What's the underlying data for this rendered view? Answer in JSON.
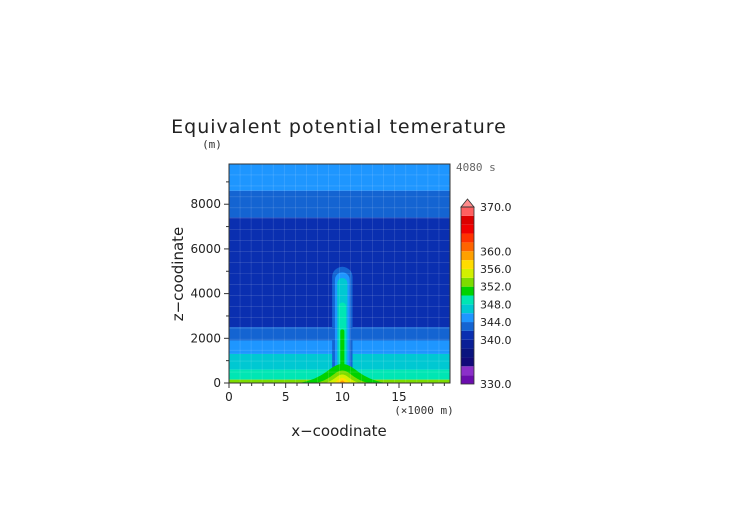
{
  "chart_data": {
    "type": "heatmap",
    "title": "Equivalent potential temerature",
    "unit_label": "(m)",
    "time_label": "4080 s",
    "xlabel": "x−coodinate",
    "ylabel": "z−coodinate",
    "x_unit_label": "(×1000 m)",
    "xlim": [
      0,
      19.5
    ],
    "ylim": [
      0,
      9800
    ],
    "x_ticks": [
      {
        "value": 0,
        "label": "0"
      },
      {
        "value": 5,
        "label": "5"
      },
      {
        "value": 10,
        "label": "10"
      },
      {
        "value": 15,
        "label": "15"
      }
    ],
    "y_ticks": [
      {
        "value": 0,
        "label": "0"
      },
      {
        "value": 2000,
        "label": "2000"
      },
      {
        "value": 4000,
        "label": "4000"
      },
      {
        "value": 6000,
        "label": "6000"
      },
      {
        "value": 8000,
        "label": "8000"
      }
    ],
    "plume_center_x": 10,
    "colorbar": {
      "range": [
        330,
        370
      ],
      "levels": [
        330,
        332,
        334,
        336,
        338,
        340,
        342,
        344,
        346,
        348,
        350,
        352,
        354,
        356,
        358,
        360,
        362,
        364,
        366,
        368,
        370
      ],
      "colors": [
        "#6a0dad",
        "#8b2fc9",
        "#120a7a",
        "#0a147f",
        "#0a1f96",
        "#0a2fb0",
        "#1464d2",
        "#1e96ff",
        "#00c8d2",
        "#00e6b4",
        "#00d200",
        "#7ddc00",
        "#d2f000",
        "#ffdc00",
        "#ffa000",
        "#ff6400",
        "#ff3200",
        "#f00000",
        "#dc0000",
        "#ff6060"
      ],
      "extend_top_color": "#ff8c8c",
      "labels": [
        {
          "value": 370,
          "label": "370.0"
        },
        {
          "value": 360,
          "label": "360.0"
        },
        {
          "value": 356,
          "label": "356.0"
        },
        {
          "value": 352,
          "label": "352.0"
        },
        {
          "value": 348,
          "label": "348.0"
        },
        {
          "value": 344,
          "label": "344.0"
        },
        {
          "value": 340,
          "label": "340.0"
        },
        {
          "value": 330,
          "label": "330.0"
        }
      ]
    },
    "layers": [
      {
        "z_range": [
          8600,
          9800
        ],
        "value": 344.5,
        "color": "#1e96ff"
      },
      {
        "z_range": [
          7400,
          8600
        ],
        "value": 342.5,
        "color": "#1464d2"
      },
      {
        "z_range": [
          2500,
          7400
        ],
        "value": 339.5,
        "color": "#0a2fb0"
      },
      {
        "z_range": [
          1900,
          2500
        ],
        "value": 341.5,
        "color": "#1464d2"
      },
      {
        "z_range": [
          1300,
          1900
        ],
        "value": 343.5,
        "color": "#1e96ff"
      },
      {
        "z_range": [
          600,
          1300
        ],
        "value": 345.5,
        "color": "#00c8d2"
      },
      {
        "z_range": [
          150,
          600
        ],
        "value": 347.5,
        "color": "#00e6b4"
      },
      {
        "z_range": [
          0,
          150
        ],
        "value": 349.5,
        "color": "#7ddc00"
      }
    ],
    "plume": [
      {
        "value": 343.5,
        "color": "#1464d2",
        "top": 5200,
        "half_width": 0.9
      },
      {
        "value": 345.5,
        "color": "#1e96ff",
        "top": 4950,
        "half_width": 0.65
      },
      {
        "value": 347.5,
        "color": "#00c8d2",
        "top": 4700,
        "half_width": 0.45
      },
      {
        "value": 349.5,
        "color": "#00e6b4",
        "top": 3600,
        "half_width": 0.32
      },
      {
        "value": 351.5,
        "color": "#00d200",
        "top": 2400,
        "half_width": 0.18
      }
    ],
    "surface_mound": [
      {
        "value": 351.5,
        "color": "#00d200",
        "top": 850,
        "half_width": 5.2
      },
      {
        "value": 353.5,
        "color": "#7ddc00",
        "top": 560,
        "half_width": 3.4
      },
      {
        "value": 355.5,
        "color": "#d2f000",
        "top": 380,
        "half_width": 2.4
      },
      {
        "value": 357.5,
        "color": "#ffdc00",
        "top": 230,
        "half_width": 1.5
      },
      {
        "value": 359.5,
        "color": "#ffa000",
        "top": 110,
        "half_width": 0.7
      }
    ]
  }
}
